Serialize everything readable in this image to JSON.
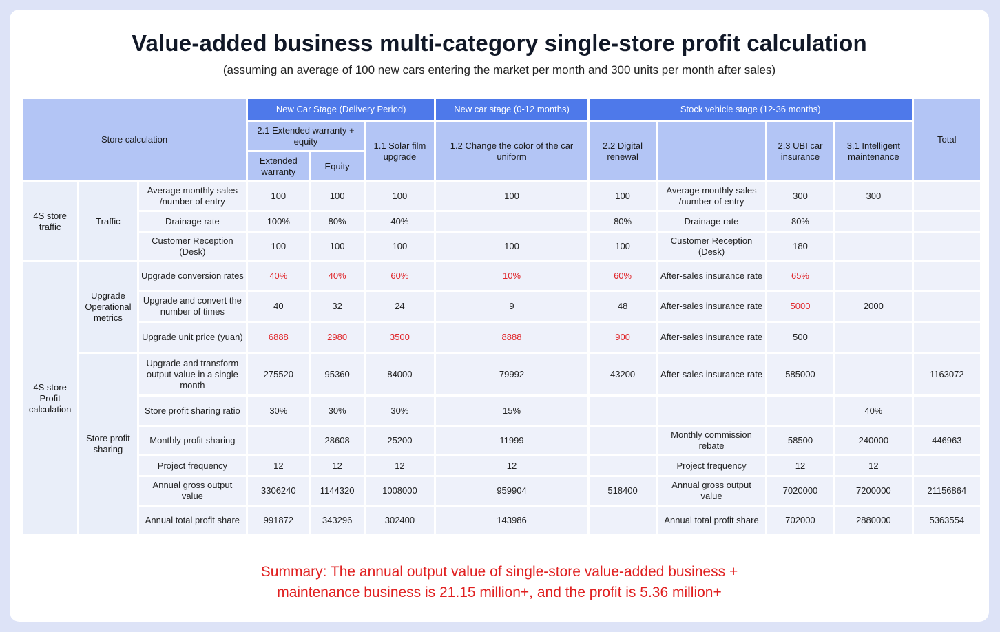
{
  "title": "Value-added business multi-category single-store profit calculation",
  "subtitle": "(assuming an average of 100 new cars entering the market per month and 300 units per month after sales)",
  "summary": {
    "line1": "Summary: The annual output value of single-store value-added business +",
    "line2": "maintenance business is 21.15 million+, and the profit is 5.36 million+"
  },
  "colors": {
    "header_dark": "#4e79ea",
    "header_light": "#b3c5f5",
    "cell": "#eef1fa",
    "highlight": "#e0262a"
  },
  "header": {
    "store_calc": "Store calculation",
    "new_car_stage_delivery": "New Car Stage (Delivery Period)",
    "new_car_stage_0_12": "New car stage (0-12 months)",
    "stock_stage": "Stock vehicle stage (12-36 months)",
    "total": "Total",
    "ext_warranty_equity": "2.1 Extended warranty + equity",
    "solar_film": "1.1 Solar film upgrade",
    "change_color": "1.2 Change the color of the car uniform",
    "digital_renewal": "2.2 Digital renewal",
    "blank": "",
    "ubi": "2.3 UBI car insurance",
    "intelligent": "3.1 Intelligent maintenance",
    "ext_warranty": "Extended warranty",
    "equity": "Equity"
  },
  "groups": {
    "traffic_outer": "4S store traffic",
    "traffic_inner": "Traffic",
    "profit_outer": "4S store Profit calculation",
    "upgrade_inner": "Upgrade Operational metrics",
    "sharing_inner": "Store profit sharing"
  },
  "rows": [
    {
      "label": "Average monthly sales /number of entry",
      "ew": "100",
      "eq": "100",
      "solar": "100",
      "color": "100",
      "digital": "100",
      "label2": "Average monthly sales /number of entry",
      "ubi": "300",
      "intel": "300",
      "total": ""
    },
    {
      "label": "Drainage rate",
      "ew": "100%",
      "eq": "80%",
      "solar": "40%",
      "color": "",
      "digital": "80%",
      "label2": "Drainage rate",
      "ubi": "80%",
      "intel": "",
      "total": ""
    },
    {
      "label": "Customer Reception (Desk)",
      "ew": "100",
      "eq": "100",
      "solar": "100",
      "color": "100",
      "digital": "100",
      "label2": "Customer Reception (Desk)",
      "ubi": "180",
      "intel": "",
      "total": ""
    },
    {
      "label": "Upgrade conversion rates",
      "ew": "40%",
      "eq": "40%",
      "solar": "60%",
      "color": "10%",
      "digital": "60%",
      "label2": "After-sales insurance rate",
      "ubi": "65%",
      "intel": "",
      "total": ""
    },
    {
      "label": "Upgrade and convert the number of times",
      "ew": "40",
      "eq": "32",
      "solar": "24",
      "color": "9",
      "digital": "48",
      "label2": "After-sales insurance rate",
      "ubi": "5000",
      "intel": "2000",
      "total": ""
    },
    {
      "label": "Upgrade unit price (yuan)",
      "ew": "6888",
      "eq": "2980",
      "solar": "3500",
      "color": "8888",
      "digital": "900",
      "label2": "After-sales insurance rate",
      "ubi": "500",
      "intel": "",
      "total": ""
    },
    {
      "label": "Upgrade and transform output value in a single month",
      "ew": "275520",
      "eq": "95360",
      "solar": "84000",
      "color": "79992",
      "digital": "43200",
      "label2": "After-sales insurance rate",
      "ubi": "585000",
      "intel": "",
      "total": "1163072"
    },
    {
      "label": "Store profit sharing ratio",
      "ew": "30%",
      "eq": "30%",
      "solar": "30%",
      "color": "15%",
      "digital": "",
      "label2": "",
      "ubi": "",
      "intel": "40%",
      "total": ""
    },
    {
      "label": "Monthly profit sharing",
      "ew": "",
      "eq": "28608",
      "solar": "25200",
      "color": "11999",
      "digital": "",
      "label2": "Monthly commission rebate",
      "ubi": "58500",
      "intel": "240000",
      "total": "446963"
    },
    {
      "label": "Project frequency",
      "ew": "12",
      "eq": "12",
      "solar": "12",
      "color": "12",
      "digital": "",
      "label2": "Project frequency",
      "ubi": "12",
      "intel": "12",
      "total": ""
    },
    {
      "label": "Annual gross output value",
      "ew": "3306240",
      "eq": "1144320",
      "solar": "1008000",
      "color": "959904",
      "digital": "518400",
      "label2": "Annual gross output value",
      "ubi": "7020000",
      "intel": "7200000",
      "total": "21156864"
    },
    {
      "label": "Annual total profit share",
      "ew": "991872",
      "eq": "343296",
      "solar": "302400",
      "color": "143986",
      "digital": "",
      "label2": "Annual total profit share",
      "ubi": "702000",
      "intel": "2880000",
      "total": "5363554"
    }
  ]
}
